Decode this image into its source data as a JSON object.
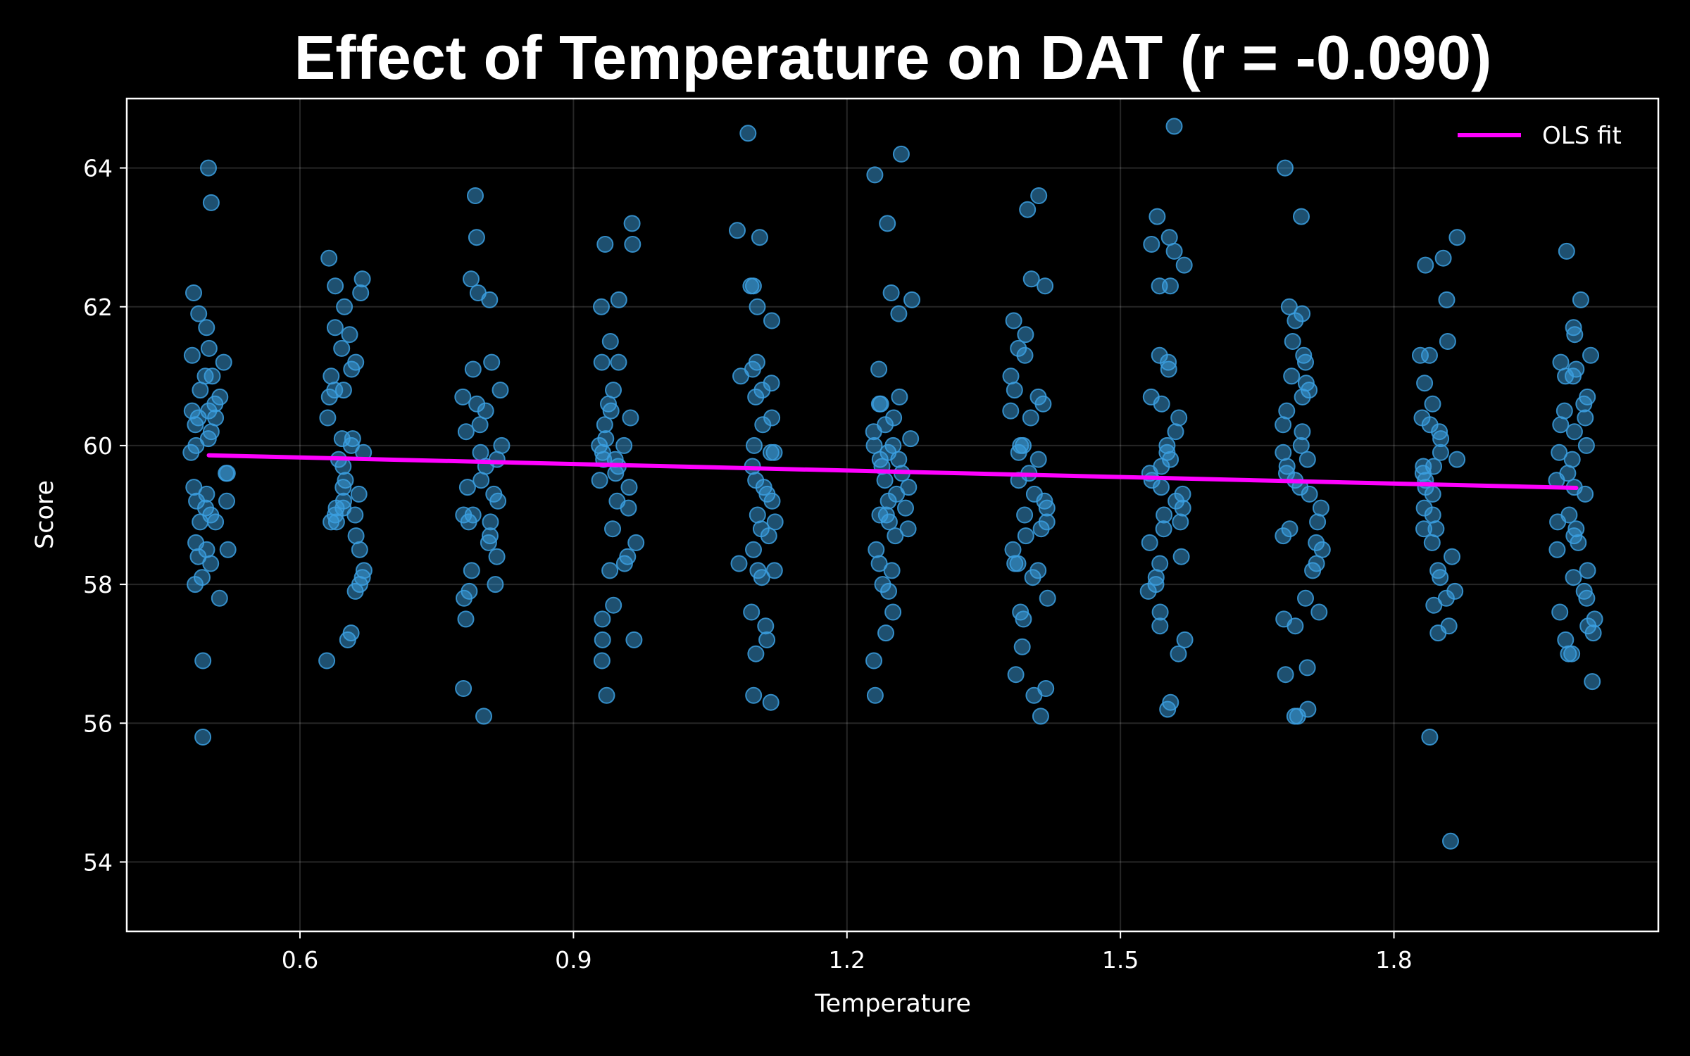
{
  "chart_data": {
    "type": "scatter",
    "title": "Effect of Temperature on DAT (r = -0.090)",
    "xlabel": "Temperature",
    "ylabel": "Score",
    "xlim": [
      0.41,
      2.09
    ],
    "ylim": [
      53.0,
      65.0
    ],
    "xticks": [
      0.6,
      0.9,
      1.2,
      1.5,
      1.8
    ],
    "xtick_labels": [
      "0.6",
      "0.9",
      "1.2",
      "1.5",
      "1.8"
    ],
    "yticks": [
      54,
      56,
      58,
      60,
      62,
      64
    ],
    "ytick_labels": [
      "54",
      "56",
      "58",
      "60",
      "62",
      "64"
    ],
    "grid": true,
    "legend": {
      "position": "top-right",
      "entries": [
        "OLS fit"
      ]
    },
    "colors": {
      "points": "#3b9fe0",
      "fit": "#ff00ff",
      "background": "#000000",
      "text": "#ffffff"
    },
    "fit_line": {
      "name": "OLS fit",
      "x": [
        0.5,
        2.0
      ],
      "y": [
        59.86,
        59.39
      ]
    },
    "groups": [
      {
        "temperature": 0.5,
        "scores": [
          64.0,
          63.5,
          62.2,
          61.9,
          61.7,
          61.4,
          61.3,
          61.2,
          61.0,
          61.0,
          60.8,
          60.7,
          60.6,
          60.5,
          60.5,
          60.4,
          60.4,
          60.3,
          60.2,
          60.1,
          60.0,
          59.9,
          59.6,
          59.6,
          59.4,
          59.3,
          59.2,
          59.2,
          59.1,
          59.0,
          58.9,
          58.9,
          58.6,
          58.5,
          58.5,
          58.4,
          58.3,
          58.1,
          58.0,
          57.8,
          56.9,
          55.8
        ]
      },
      {
        "temperature": 0.65,
        "scores": [
          62.7,
          62.4,
          62.3,
          62.2,
          62.0,
          61.7,
          61.6,
          61.4,
          61.2,
          61.1,
          61.0,
          60.8,
          60.8,
          60.7,
          60.4,
          60.1,
          60.1,
          60.0,
          59.9,
          59.8,
          59.7,
          59.5,
          59.4,
          59.3,
          59.2,
          59.1,
          59.1,
          59.0,
          59.0,
          58.9,
          58.9,
          58.7,
          58.5,
          58.2,
          58.1,
          58.0,
          57.9,
          57.3,
          57.2,
          56.9
        ]
      },
      {
        "temperature": 0.8,
        "scores": [
          63.6,
          63.0,
          62.4,
          62.2,
          62.1,
          61.2,
          61.1,
          60.8,
          60.7,
          60.6,
          60.5,
          60.3,
          60.2,
          60.0,
          59.9,
          59.8,
          59.7,
          59.5,
          59.4,
          59.3,
          59.2,
          59.0,
          59.0,
          58.9,
          58.9,
          58.7,
          58.6,
          58.4,
          58.2,
          58.0,
          57.9,
          57.8,
          57.5,
          56.5,
          56.1
        ]
      },
      {
        "temperature": 0.95,
        "scores": [
          63.2,
          62.9,
          62.9,
          62.1,
          62.0,
          61.5,
          61.2,
          61.2,
          60.8,
          60.6,
          60.5,
          60.4,
          60.3,
          60.1,
          60.0,
          60.0,
          59.9,
          59.8,
          59.8,
          59.7,
          59.6,
          59.5,
          59.4,
          59.2,
          59.1,
          58.8,
          58.6,
          58.4,
          58.3,
          58.2,
          57.7,
          57.5,
          57.2,
          57.2,
          56.9,
          56.4
        ]
      },
      {
        "temperature": 1.1,
        "scores": [
          64.5,
          63.1,
          63.0,
          62.3,
          62.3,
          62.0,
          61.8,
          61.2,
          61.1,
          61.0,
          60.9,
          60.8,
          60.7,
          60.4,
          60.3,
          60.0,
          59.9,
          59.9,
          59.7,
          59.5,
          59.4,
          59.3,
          59.2,
          59.0,
          58.9,
          58.8,
          58.7,
          58.5,
          58.3,
          58.2,
          58.2,
          58.1,
          57.6,
          57.4,
          57.2,
          57.0,
          56.4,
          56.3
        ]
      },
      {
        "temperature": 1.25,
        "scores": [
          64.2,
          63.9,
          63.2,
          62.2,
          62.1,
          61.9,
          61.1,
          60.7,
          60.6,
          60.6,
          60.4,
          60.3,
          60.2,
          60.1,
          60.0,
          60.0,
          59.9,
          59.8,
          59.8,
          59.7,
          59.6,
          59.5,
          59.4,
          59.3,
          59.2,
          59.1,
          59.0,
          59.0,
          58.9,
          58.8,
          58.7,
          58.5,
          58.3,
          58.2,
          58.0,
          57.9,
          57.6,
          57.3,
          56.9,
          56.4
        ]
      },
      {
        "temperature": 1.4,
        "scores": [
          63.6,
          63.4,
          62.4,
          62.3,
          61.8,
          61.6,
          61.4,
          61.3,
          61.0,
          60.8,
          60.7,
          60.6,
          60.5,
          60.4,
          60.0,
          60.0,
          59.9,
          59.8,
          59.6,
          59.5,
          59.3,
          59.2,
          59.1,
          59.0,
          58.9,
          58.8,
          58.7,
          58.5,
          58.3,
          58.3,
          58.2,
          58.1,
          57.8,
          57.6,
          57.5,
          57.1,
          56.7,
          56.5,
          56.4,
          56.1
        ]
      },
      {
        "temperature": 1.55,
        "scores": [
          64.6,
          63.3,
          63.0,
          62.9,
          62.8,
          62.6,
          62.3,
          62.3,
          61.3,
          61.2,
          61.1,
          60.7,
          60.6,
          60.4,
          60.2,
          60.0,
          59.9,
          59.8,
          59.7,
          59.6,
          59.5,
          59.4,
          59.3,
          59.2,
          59.1,
          59.0,
          58.9,
          58.8,
          58.6,
          58.4,
          58.3,
          58.1,
          58.0,
          57.9,
          57.6,
          57.4,
          57.2,
          57.0,
          56.3,
          56.2
        ]
      },
      {
        "temperature": 1.7,
        "scores": [
          64.0,
          63.3,
          62.0,
          61.9,
          61.8,
          61.5,
          61.3,
          61.2,
          61.0,
          60.9,
          60.8,
          60.7,
          60.5,
          60.3,
          60.2,
          60.0,
          59.9,
          59.8,
          59.7,
          59.6,
          59.5,
          59.4,
          59.3,
          59.1,
          58.9,
          58.8,
          58.7,
          58.6,
          58.5,
          58.3,
          58.2,
          57.8,
          57.6,
          57.5,
          57.4,
          56.8,
          56.7,
          56.2,
          56.1,
          56.1
        ]
      },
      {
        "temperature": 1.85,
        "scores": [
          63.0,
          62.7,
          62.6,
          62.1,
          61.5,
          61.3,
          61.3,
          60.9,
          60.6,
          60.4,
          60.3,
          60.2,
          60.1,
          59.9,
          59.8,
          59.7,
          59.7,
          59.6,
          59.5,
          59.4,
          59.3,
          59.1,
          59.0,
          58.8,
          58.8,
          58.6,
          58.4,
          58.2,
          58.1,
          57.9,
          57.8,
          57.7,
          57.4,
          57.3,
          55.8,
          54.3
        ]
      },
      {
        "temperature": 2.0,
        "scores": [
          62.8,
          62.1,
          61.7,
          61.6,
          61.3,
          61.2,
          61.1,
          61.0,
          61.0,
          60.7,
          60.6,
          60.5,
          60.4,
          60.3,
          60.2,
          60.0,
          59.9,
          59.8,
          59.6,
          59.5,
          59.4,
          59.3,
          59.0,
          58.9,
          58.8,
          58.7,
          58.6,
          58.5,
          58.2,
          58.1,
          57.9,
          57.8,
          57.6,
          57.5,
          57.4,
          57.3,
          57.2,
          57.0,
          57.0,
          56.6
        ]
      }
    ]
  }
}
